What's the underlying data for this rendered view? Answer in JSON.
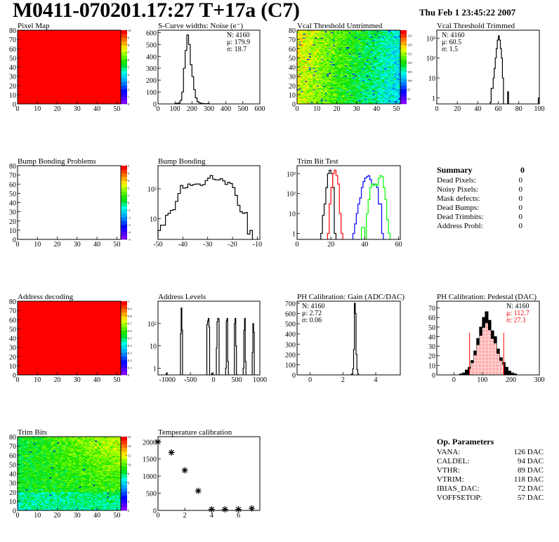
{
  "header": {
    "title": "M0411-070201.17:27 T+17a (C7)",
    "date": "Thu Feb  1 23:45:22 2007"
  },
  "colors": {
    "hist_line": "#000000",
    "red": "#ff0000",
    "blue": "#0000ff",
    "green": "#00ff00",
    "map_uniform": "#ff0000"
  },
  "summary": {
    "title": "Summary",
    "total": "0",
    "rows": [
      {
        "label": "Dead Pixels:",
        "value": "0"
      },
      {
        "label": "Noisy Pixels:",
        "value": "0"
      },
      {
        "label": "Mask defects:",
        "value": "0"
      },
      {
        "label": "Dead Bumps:",
        "value": "0"
      },
      {
        "label": "Dead Trimbits:",
        "value": "0"
      },
      {
        "label": "Address Probl:",
        "value": "0"
      }
    ]
  },
  "op_parameters": {
    "title": "Op. Parameters",
    "rows": [
      {
        "label": "VANA:",
        "value": "126 DAC"
      },
      {
        "label": "CALDEL:",
        "value": "94 DAC"
      },
      {
        "label": "VTHR:",
        "value": "89 DAC"
      },
      {
        "label": "VTRIM:",
        "value": "118 DAC"
      },
      {
        "label": "IBIAS_DAC:",
        "value": "72 DAC"
      },
      {
        "label": "VOFFSETOP:",
        "value": "57 DAC"
      }
    ]
  },
  "chart_data": [
    {
      "id": "pixel_map",
      "type": "heatmap",
      "title": "Pixel Map",
      "xlim": [
        0,
        52
      ],
      "ylim": [
        0,
        80
      ],
      "xticks": [
        "0",
        "10",
        "20",
        "30",
        "40",
        "50"
      ],
      "yticks": [
        "0",
        "10",
        "20",
        "30",
        "40",
        "50",
        "60",
        "70",
        "80"
      ],
      "zlim": [
        0,
        10
      ],
      "zticks": [
        "0",
        "1",
        "2",
        "3",
        "4",
        "5",
        "6",
        "7",
        "8",
        "9",
        "10"
      ],
      "pattern": "uniform",
      "uniform_value": 10
    },
    {
      "id": "scurve",
      "type": "bar",
      "title": "S-Curve widths: Noise (e⁻)",
      "xlim": [
        0,
        600
      ],
      "ylim": [
        0,
        620
      ],
      "log": false,
      "xticks": [
        "0",
        "100",
        "200",
        "300",
        "400",
        "500",
        "600"
      ],
      "yticks": [
        "0",
        "100",
        "200",
        "300",
        "400",
        "500",
        "600"
      ],
      "bin_width": 10,
      "bins": [
        [
          100,
          5
        ],
        [
          110,
          5
        ],
        [
          120,
          8
        ],
        [
          130,
          30
        ],
        [
          140,
          100
        ],
        [
          150,
          300
        ],
        [
          160,
          450
        ],
        [
          170,
          580
        ],
        [
          180,
          500
        ],
        [
          190,
          330
        ],
        [
          200,
          230
        ],
        [
          210,
          120
        ],
        [
          220,
          50
        ],
        [
          230,
          20
        ],
        [
          240,
          10
        ],
        [
          250,
          5
        ],
        [
          260,
          3
        ],
        [
          270,
          2
        ],
        [
          280,
          1
        ],
        [
          290,
          4
        ]
      ],
      "stats": {
        "position": "top-right",
        "lines": [
          "N: 4160",
          "μ: 179.9",
          "σ: 18.7"
        ]
      }
    },
    {
      "id": "vcal_untrimmed",
      "type": "heatmap",
      "title": "Vcal Threshold Untrimmed",
      "xlim": [
        0,
        52
      ],
      "ylim": [
        0,
        80
      ],
      "xticks": [
        "0",
        "10",
        "20",
        "30",
        "40",
        "50"
      ],
      "yticks": [
        "0",
        "10",
        "20",
        "30",
        "40",
        "50",
        "60",
        "70",
        "80"
      ],
      "zlim": [
        87,
        128
      ],
      "zticks": [
        "90",
        "95",
        "100",
        "105",
        "110",
        "115",
        "120",
        "125"
      ],
      "pattern": "vcal"
    },
    {
      "id": "vcal_trimmed",
      "type": "bar",
      "title": "Vcal Threshold Trimmed",
      "xlim": [
        0,
        100
      ],
      "ylim": [
        0.5,
        2500
      ],
      "log": true,
      "xticks": [
        "0",
        "20",
        "40",
        "60",
        "80",
        "100"
      ],
      "yticks": [
        "1",
        "10",
        "10²",
        "10³"
      ],
      "bin_width": 1,
      "bins": [
        [
          52,
          0.6
        ],
        [
          53,
          3
        ],
        [
          54,
          3
        ],
        [
          55,
          10
        ],
        [
          56,
          30
        ],
        [
          57,
          100
        ],
        [
          58,
          300
        ],
        [
          59,
          800
        ],
        [
          60,
          1300
        ],
        [
          61,
          800
        ],
        [
          62,
          300
        ],
        [
          63,
          100
        ],
        [
          64,
          10
        ],
        [
          69,
          2
        ],
        [
          99,
          1
        ]
      ],
      "stats": {
        "position": "top-left",
        "lines": [
          "N: 4160",
          "μ: 60.5",
          "σ:  1.5"
        ]
      }
    },
    {
      "id": "bump_map",
      "type": "heatmap",
      "title": "Bump Bonding Problems",
      "xlim": [
        0,
        52
      ],
      "ylim": [
        0,
        80
      ],
      "xticks": [
        "0",
        "10",
        "20",
        "30",
        "40",
        "50"
      ],
      "yticks": [
        "0",
        "10",
        "20",
        "30",
        "40",
        "50",
        "60",
        "70",
        "80"
      ],
      "zlim": [
        -5,
        5
      ],
      "zticks": [
        "-5",
        "-4",
        "-3",
        "-2",
        "-1",
        "0",
        "1",
        "2",
        "3",
        "4",
        "5"
      ],
      "pattern": "empty"
    },
    {
      "id": "bump",
      "type": "bar",
      "title": "Bump Bonding",
      "xlim": [
        -50,
        -9
      ],
      "ylim": [
        2,
        600
      ],
      "log": true,
      "xticks": [
        "-50",
        "-40",
        "-30",
        "-20",
        "-10"
      ],
      "yticks": [
        "10",
        "10²"
      ],
      "bin_width": 1,
      "bins": [
        [
          -50,
          4
        ],
        [
          -49,
          6
        ],
        [
          -48,
          6
        ],
        [
          -47,
          13
        ],
        [
          -46,
          15
        ],
        [
          -45,
          19
        ],
        [
          -44,
          20
        ],
        [
          -43,
          38
        ],
        [
          -42,
          70
        ],
        [
          -41,
          130
        ],
        [
          -40,
          105
        ],
        [
          -39,
          110
        ],
        [
          -38,
          145
        ],
        [
          -37,
          130
        ],
        [
          -36,
          140
        ],
        [
          -35,
          145
        ],
        [
          -34,
          145
        ],
        [
          -33,
          130
        ],
        [
          -32,
          140
        ],
        [
          -31,
          190
        ],
        [
          -30,
          230
        ],
        [
          -29,
          280
        ],
        [
          -28,
          210
        ],
        [
          -27,
          200
        ],
        [
          -26,
          200
        ],
        [
          -25,
          220
        ],
        [
          -24,
          185
        ],
        [
          -23,
          140
        ],
        [
          -22,
          165
        ],
        [
          -21,
          150
        ],
        [
          -20,
          110
        ],
        [
          -19,
          60
        ],
        [
          -18,
          28
        ],
        [
          -17,
          17
        ],
        [
          -16,
          15
        ],
        [
          -15,
          16
        ],
        [
          -14,
          3
        ],
        [
          -13,
          4
        ]
      ]
    },
    {
      "id": "trim_bit_test",
      "type": "bar",
      "title": "Trim Bit Test",
      "xlim": [
        0,
        61
      ],
      "ylim": [
        0.5,
        2500
      ],
      "log": true,
      "xticks": [
        "0",
        "20",
        "40",
        "60"
      ],
      "yticks": [
        "1",
        "10",
        "10²",
        "10³"
      ],
      "bin_width": 1,
      "series": [
        {
          "color": "#000000",
          "bins": [
            [
              14,
              1
            ],
            [
              15,
              8
            ],
            [
              16,
              30
            ],
            [
              17,
              200
            ],
            [
              18,
              1000
            ],
            [
              19,
              1500
            ],
            [
              20,
              1000
            ],
            [
              21,
              200
            ],
            [
              22,
              1
            ]
          ]
        },
        {
          "color": "#ff0000",
          "bins": [
            [
              18,
              1
            ],
            [
              19,
              30
            ],
            [
              20,
              200
            ],
            [
              21,
              1000
            ],
            [
              22,
              1500
            ],
            [
              23,
              800
            ],
            [
              24,
              300
            ],
            [
              25,
              10
            ],
            [
              26,
              1
            ]
          ]
        },
        {
          "color": "#0000ff",
          "bins": [
            [
              33,
              1
            ],
            [
              34,
              3
            ],
            [
              35,
              10
            ],
            [
              36,
              30
            ],
            [
              37,
              60
            ],
            [
              38,
              200
            ],
            [
              39,
              400
            ],
            [
              40,
              600
            ],
            [
              41,
              700
            ],
            [
              42,
              800
            ],
            [
              43,
              500
            ],
            [
              44,
              300
            ],
            [
              45,
              300
            ],
            [
              46,
              300
            ],
            [
              47,
              200
            ],
            [
              48,
              30
            ],
            [
              49,
              30
            ],
            [
              50,
              1
            ]
          ]
        },
        {
          "color": "#00ff00",
          "bins": [
            [
              38,
              2
            ],
            [
              39,
              2
            ],
            [
              41,
              10
            ],
            [
              42,
              50
            ],
            [
              43,
              200
            ],
            [
              44,
              300
            ],
            [
              45,
              250
            ],
            [
              46,
              300
            ],
            [
              47,
              250
            ],
            [
              48,
              600
            ],
            [
              49,
              800
            ],
            [
              50,
              700
            ],
            [
              51,
              200
            ],
            [
              52,
              50
            ],
            [
              53,
              5
            ],
            [
              54,
              1
            ]
          ]
        }
      ]
    },
    {
      "id": "address_map",
      "type": "heatmap",
      "title": "Address decoding",
      "xlim": [
        0,
        52
      ],
      "ylim": [
        0,
        80
      ],
      "xticks": [
        "0",
        "10",
        "20",
        "30",
        "40",
        "50"
      ],
      "yticks": [
        "0",
        "10",
        "20",
        "30",
        "40",
        "50",
        "60",
        "70",
        "80"
      ],
      "zlim": [
        0,
        1
      ],
      "zticks": [
        "0",
        "0.1",
        "0.2",
        "0.3",
        "0.4",
        "0.5",
        "0.6",
        "0.7",
        "0.8",
        "0.9",
        "1"
      ],
      "pattern": "uniform",
      "uniform_value": 1
    },
    {
      "id": "address_levels",
      "type": "bar",
      "title": "Address Levels",
      "xlim": [
        -1200,
        1000
      ],
      "ylim": [
        0.5,
        1000
      ],
      "log": true,
      "xticks": [
        "-1000",
        "-500",
        "0",
        "500",
        "1000"
      ],
      "yticks": [
        "1",
        "10",
        "10²"
      ],
      "bin_width": 15,
      "bins": [
        [
          -1020,
          0.6
        ],
        [
          -715,
          35
        ],
        [
          -700,
          500
        ],
        [
          -685,
          50
        ],
        [
          -145,
          90
        ],
        [
          -130,
          130
        ],
        [
          -115,
          170
        ],
        [
          -100,
          70
        ],
        [
          -40,
          0.6
        ],
        [
          60,
          8
        ],
        [
          75,
          120
        ],
        [
          90,
          170
        ],
        [
          105,
          160
        ],
        [
          260,
          1
        ],
        [
          275,
          130
        ],
        [
          290,
          170
        ],
        [
          305,
          2
        ],
        [
          450,
          100
        ],
        [
          465,
          170
        ],
        [
          480,
          10
        ],
        [
          640,
          1
        ],
        [
          655,
          50
        ],
        [
          670,
          170
        ],
        [
          685,
          2
        ],
        [
          835,
          5
        ],
        [
          850,
          100
        ],
        [
          865,
          40
        ]
      ]
    },
    {
      "id": "ph_gain",
      "type": "bar",
      "title": "PH Calibration: Gain (ADC/DAC)",
      "xlim": [
        -0.8,
        5.5
      ],
      "ylim": [
        0,
        720
      ],
      "log": false,
      "xticks": [
        "0",
        "2",
        "4"
      ],
      "yticks": [
        "0",
        "100",
        "200",
        "300",
        "400",
        "500",
        "600",
        "700"
      ],
      "bin_width": 0.05,
      "bins": [
        [
          2.5,
          5
        ],
        [
          2.55,
          10
        ],
        [
          2.6,
          60
        ],
        [
          2.65,
          250
        ],
        [
          2.7,
          700
        ],
        [
          2.75,
          600
        ],
        [
          2.8,
          200
        ],
        [
          2.85,
          50
        ],
        [
          2.9,
          10
        ]
      ],
      "stats": {
        "position": "top-left",
        "lines": [
          "N: 4160",
          "μ: 2.72",
          "σ: 0.06"
        ]
      }
    },
    {
      "id": "ph_pedestal",
      "type": "bar",
      "title": "PH Calibration: Pedestal (DAC)",
      "xlim": [
        -60,
        300
      ],
      "ylim": [
        0,
        77
      ],
      "log": false,
      "xticks": [
        "0",
        "100",
        "200",
        "300"
      ],
      "yticks": [
        "0",
        "10",
        "20",
        "30",
        "40",
        "50",
        "60",
        "70"
      ],
      "bin_width": 10,
      "filled": true,
      "bins": [
        [
          20,
          1
        ],
        [
          30,
          2
        ],
        [
          40,
          5
        ],
        [
          50,
          8
        ],
        [
          60,
          15
        ],
        [
          70,
          25
        ],
        [
          80,
          38
        ],
        [
          90,
          50
        ],
        [
          100,
          60
        ],
        [
          110,
          66
        ],
        [
          120,
          57
        ],
        [
          130,
          46
        ],
        [
          140,
          40
        ],
        [
          150,
          27
        ],
        [
          160,
          18
        ],
        [
          170,
          13
        ],
        [
          180,
          8
        ],
        [
          190,
          4
        ],
        [
          200,
          2
        ],
        [
          210,
          1
        ]
      ],
      "fit_range": [
        55,
        175
      ],
      "fit_color": "#ff0000",
      "stats": {
        "position": "top-right",
        "lines": [
          "N: 4160",
          "μ: 112.7",
          "σ: 27.1"
        ],
        "line_colors": [
          "#000000",
          "#ff0000",
          "#ff0000"
        ]
      }
    },
    {
      "id": "trim_bits",
      "type": "heatmap",
      "title": "Trim Bits",
      "xlim": [
        0,
        52
      ],
      "ylim": [
        0,
        80
      ],
      "xticks": [
        "0",
        "10",
        "20",
        "30",
        "40",
        "50"
      ],
      "yticks": [
        "0",
        "10",
        "20",
        "30",
        "40",
        "50",
        "60",
        "70",
        "80"
      ],
      "zlim": [
        0,
        16
      ],
      "zticks": [
        "0",
        "2",
        "4",
        "6",
        "8",
        "10",
        "12",
        "14",
        "16"
      ],
      "pattern": "trim"
    },
    {
      "id": "temperature",
      "type": "scatter",
      "title": "Temperature calibration",
      "xlim": [
        0,
        7.6
      ],
      "ylim": [
        0,
        2150
      ],
      "xticks": [
        "0",
        "2",
        "4",
        "6"
      ],
      "yticks": [
        "0",
        "500",
        "1000",
        "1500",
        "2000"
      ],
      "x": [
        0,
        1,
        2,
        3,
        4,
        5,
        6,
        7
      ],
      "y": [
        2000,
        1690,
        1170,
        570,
        30,
        30,
        30,
        60
      ],
      "marker": "asterisk"
    }
  ]
}
